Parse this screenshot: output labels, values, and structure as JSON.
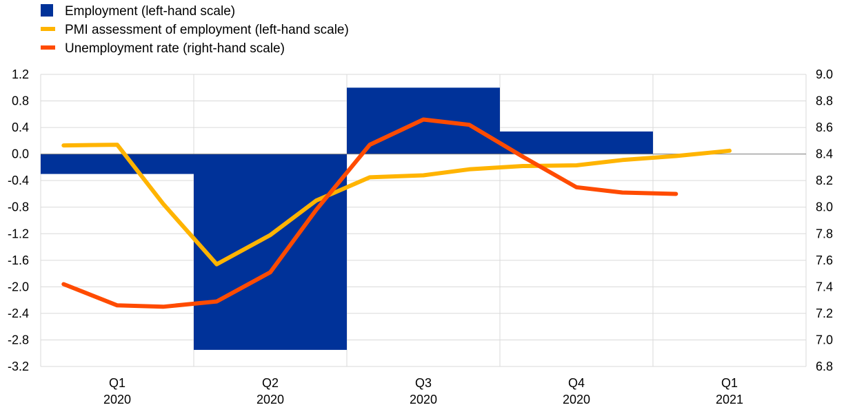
{
  "chart_data": {
    "type": "bar+line",
    "title": "",
    "legend": [
      {
        "label": "Employment (left-hand scale)",
        "color": "#003299",
        "kind": "bar"
      },
      {
        "label": "PMI assessment of employment (left-hand scale)",
        "color": "#FFB400",
        "kind": "line"
      },
      {
        "label": "Unemployment rate (right-hand scale)",
        "color": "#FF4B00",
        "kind": "line"
      }
    ],
    "legend_position": "top-left",
    "x_categories": [
      {
        "quarter": "Q1",
        "year": "2020"
      },
      {
        "quarter": "Q2",
        "year": "2020"
      },
      {
        "quarter": "Q3",
        "year": "2020"
      },
      {
        "quarter": "Q4",
        "year": "2020"
      },
      {
        "quarter": "Q1",
        "year": "2021"
      }
    ],
    "left_axis": {
      "ylim": [
        -3.2,
        1.2
      ],
      "ticks": [
        "1.2",
        "0.8",
        "0.4",
        "0.0",
        "-0.4",
        "-0.8",
        "-1.2",
        "-1.6",
        "-2.0",
        "-2.4",
        "-2.8",
        "-3.2"
      ]
    },
    "right_axis": {
      "ylim": [
        6.8,
        9.0
      ],
      "ticks": [
        "9.0",
        "8.8",
        "8.6",
        "8.4",
        "8.2",
        "8.0",
        "7.8",
        "7.6",
        "7.4",
        "7.2",
        "7.0",
        "6.8"
      ]
    },
    "grid": true,
    "series": {
      "employment": {
        "axis": "left",
        "bars": [
          {
            "quarter_index": 0,
            "value": -0.3
          },
          {
            "quarter_index": 1,
            "value": -2.95
          },
          {
            "quarter_index": 2,
            "value": 1.0
          },
          {
            "quarter_index": 3,
            "value": 0.34
          }
        ]
      },
      "pmi": {
        "axis": "left",
        "points": [
          {
            "x": 0.15,
            "y": 0.13
          },
          {
            "x": 0.5,
            "y": 0.14
          },
          {
            "x": 0.8,
            "y": -0.75
          },
          {
            "x": 1.15,
            "y": -1.66
          },
          {
            "x": 1.5,
            "y": -1.22
          },
          {
            "x": 1.8,
            "y": -0.7
          },
          {
            "x": 2.15,
            "y": -0.35
          },
          {
            "x": 2.5,
            "y": -0.32
          },
          {
            "x": 2.8,
            "y": -0.23
          },
          {
            "x": 3.15,
            "y": -0.18
          },
          {
            "x": 3.5,
            "y": -0.17
          },
          {
            "x": 3.8,
            "y": -0.09
          },
          {
            "x": 4.15,
            "y": -0.03
          },
          {
            "x": 4.5,
            "y": 0.05
          }
        ]
      },
      "unemployment": {
        "axis": "right",
        "points": [
          {
            "x": 0.15,
            "y": 7.42
          },
          {
            "x": 0.5,
            "y": 7.26
          },
          {
            "x": 0.8,
            "y": 7.25
          },
          {
            "x": 1.15,
            "y": 7.29
          },
          {
            "x": 1.5,
            "y": 7.51
          },
          {
            "x": 1.8,
            "y": 7.98
          },
          {
            "x": 2.15,
            "y": 8.47
          },
          {
            "x": 2.5,
            "y": 8.66
          },
          {
            "x": 2.8,
            "y": 8.62
          },
          {
            "x": 3.15,
            "y": 8.38
          },
          {
            "x": 3.5,
            "y": 8.15
          },
          {
            "x": 3.8,
            "y": 8.11
          },
          {
            "x": 4.15,
            "y": 8.1
          }
        ]
      }
    }
  }
}
